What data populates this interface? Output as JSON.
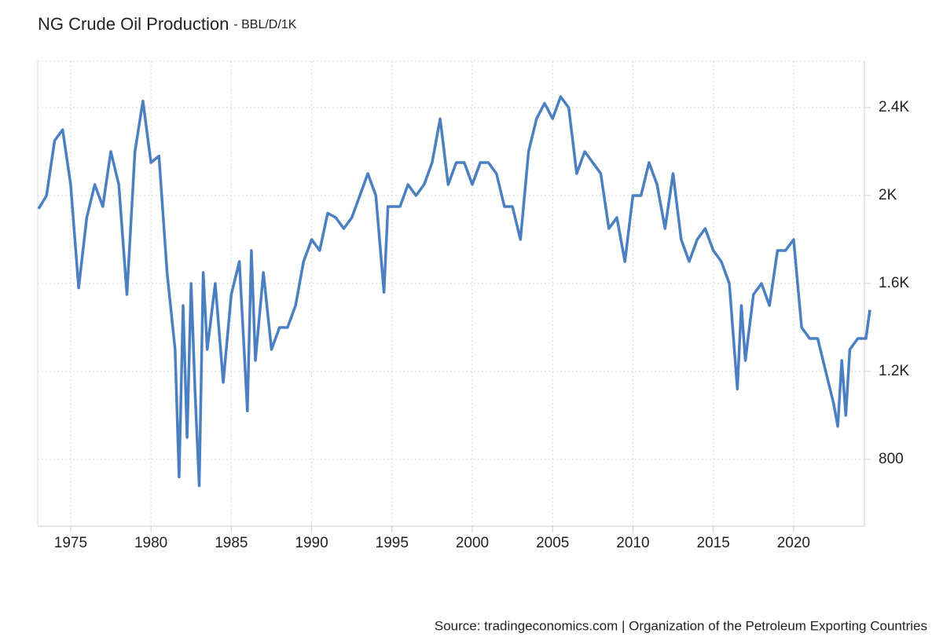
{
  "chart_data": {
    "type": "line",
    "title": "NG Crude Oil Production",
    "subtitle": "- BBL/D/1K",
    "source": "Source: tradingeconomics.com | Organization of the Petroleum Exporting Countries",
    "x": [
      1973.0,
      1973.5,
      1974.0,
      1974.5,
      1975.0,
      1975.5,
      1976.0,
      1976.5,
      1977.0,
      1977.5,
      1978.0,
      1978.5,
      1979.0,
      1979.5,
      1980.0,
      1980.5,
      1981.0,
      1981.5,
      1981.75,
      1982.0,
      1982.25,
      1982.5,
      1982.75,
      1983.0,
      1983.25,
      1983.5,
      1984.0,
      1984.5,
      1985.0,
      1985.5,
      1986.0,
      1986.25,
      1986.5,
      1987.0,
      1987.5,
      1988.0,
      1988.5,
      1989.0,
      1989.5,
      1990.0,
      1990.5,
      1991.0,
      1991.5,
      1992.0,
      1992.5,
      1993.0,
      1993.5,
      1994.0,
      1994.5,
      1994.75,
      1995.0,
      1995.5,
      1996.0,
      1996.5,
      1997.0,
      1997.5,
      1998.0,
      1998.5,
      1999.0,
      1999.5,
      2000.0,
      2000.5,
      2001.0,
      2001.5,
      2002.0,
      2002.5,
      2003.0,
      2003.5,
      2004.0,
      2004.5,
      2005.0,
      2005.5,
      2006.0,
      2006.5,
      2007.0,
      2007.5,
      2008.0,
      2008.5,
      2009.0,
      2009.5,
      2010.0,
      2010.5,
      2011.0,
      2011.5,
      2012.0,
      2012.5,
      2013.0,
      2013.5,
      2014.0,
      2014.5,
      2015.0,
      2015.5,
      2016.0,
      2016.5,
      2016.75,
      2017.0,
      2017.5,
      2018.0,
      2018.5,
      2019.0,
      2019.5,
      2020.0,
      2020.5,
      2021.0,
      2021.5,
      2022.0,
      2022.5,
      2022.75,
      2023.0,
      2023.25,
      2023.5,
      2024.0,
      2024.5,
      2024.75
    ],
    "series": [
      {
        "name": "NG Crude Oil Production",
        "color": "#4a7fc1",
        "values": [
          1940,
          2000,
          2250,
          2300,
          2050,
          1580,
          1900,
          2050,
          1950,
          2200,
          2050,
          1550,
          2200,
          2430,
          2150,
          2180,
          1650,
          1300,
          720,
          1500,
          900,
          1600,
          1100,
          680,
          1650,
          1300,
          1600,
          1150,
          1550,
          1700,
          1020,
          1750,
          1250,
          1650,
          1300,
          1400,
          1400,
          1500,
          1700,
          1800,
          1750,
          1920,
          1900,
          1850,
          1900,
          2000,
          2100,
          2000,
          1560,
          1950,
          1950,
          1950,
          2050,
          2000,
          2050,
          2150,
          2350,
          2050,
          2150,
          2150,
          2050,
          2150,
          2150,
          2100,
          1950,
          1950,
          1800,
          2200,
          2350,
          2420,
          2350,
          2450,
          2400,
          2100,
          2200,
          2150,
          2100,
          1850,
          1900,
          1700,
          2000,
          2000,
          2150,
          2050,
          1850,
          2100,
          1800,
          1700,
          1800,
          1850,
          1750,
          1700,
          1600,
          1120,
          1500,
          1250,
          1550,
          1600,
          1500,
          1750,
          1750,
          1800,
          1400,
          1350,
          1350,
          1200,
          1050,
          950,
          1250,
          1000,
          1300,
          1350,
          1350,
          1480
        ]
      }
    ],
    "xlim": [
      1972.95,
      2024.8
    ],
    "xticks": [
      1975,
      1980,
      1985,
      1990,
      1995,
      2000,
      2005,
      2010,
      2015,
      2020
    ],
    "ylim": [
      496,
      2611
    ],
    "yticks": [
      800,
      {
        "value": 1200,
        "label": "1.2K"
      },
      {
        "value": 1600,
        "label": "1.6K"
      },
      {
        "value": 2000,
        "label": "2K"
      },
      {
        "value": 2400,
        "label": "2.4K"
      }
    ],
    "grid": true
  }
}
